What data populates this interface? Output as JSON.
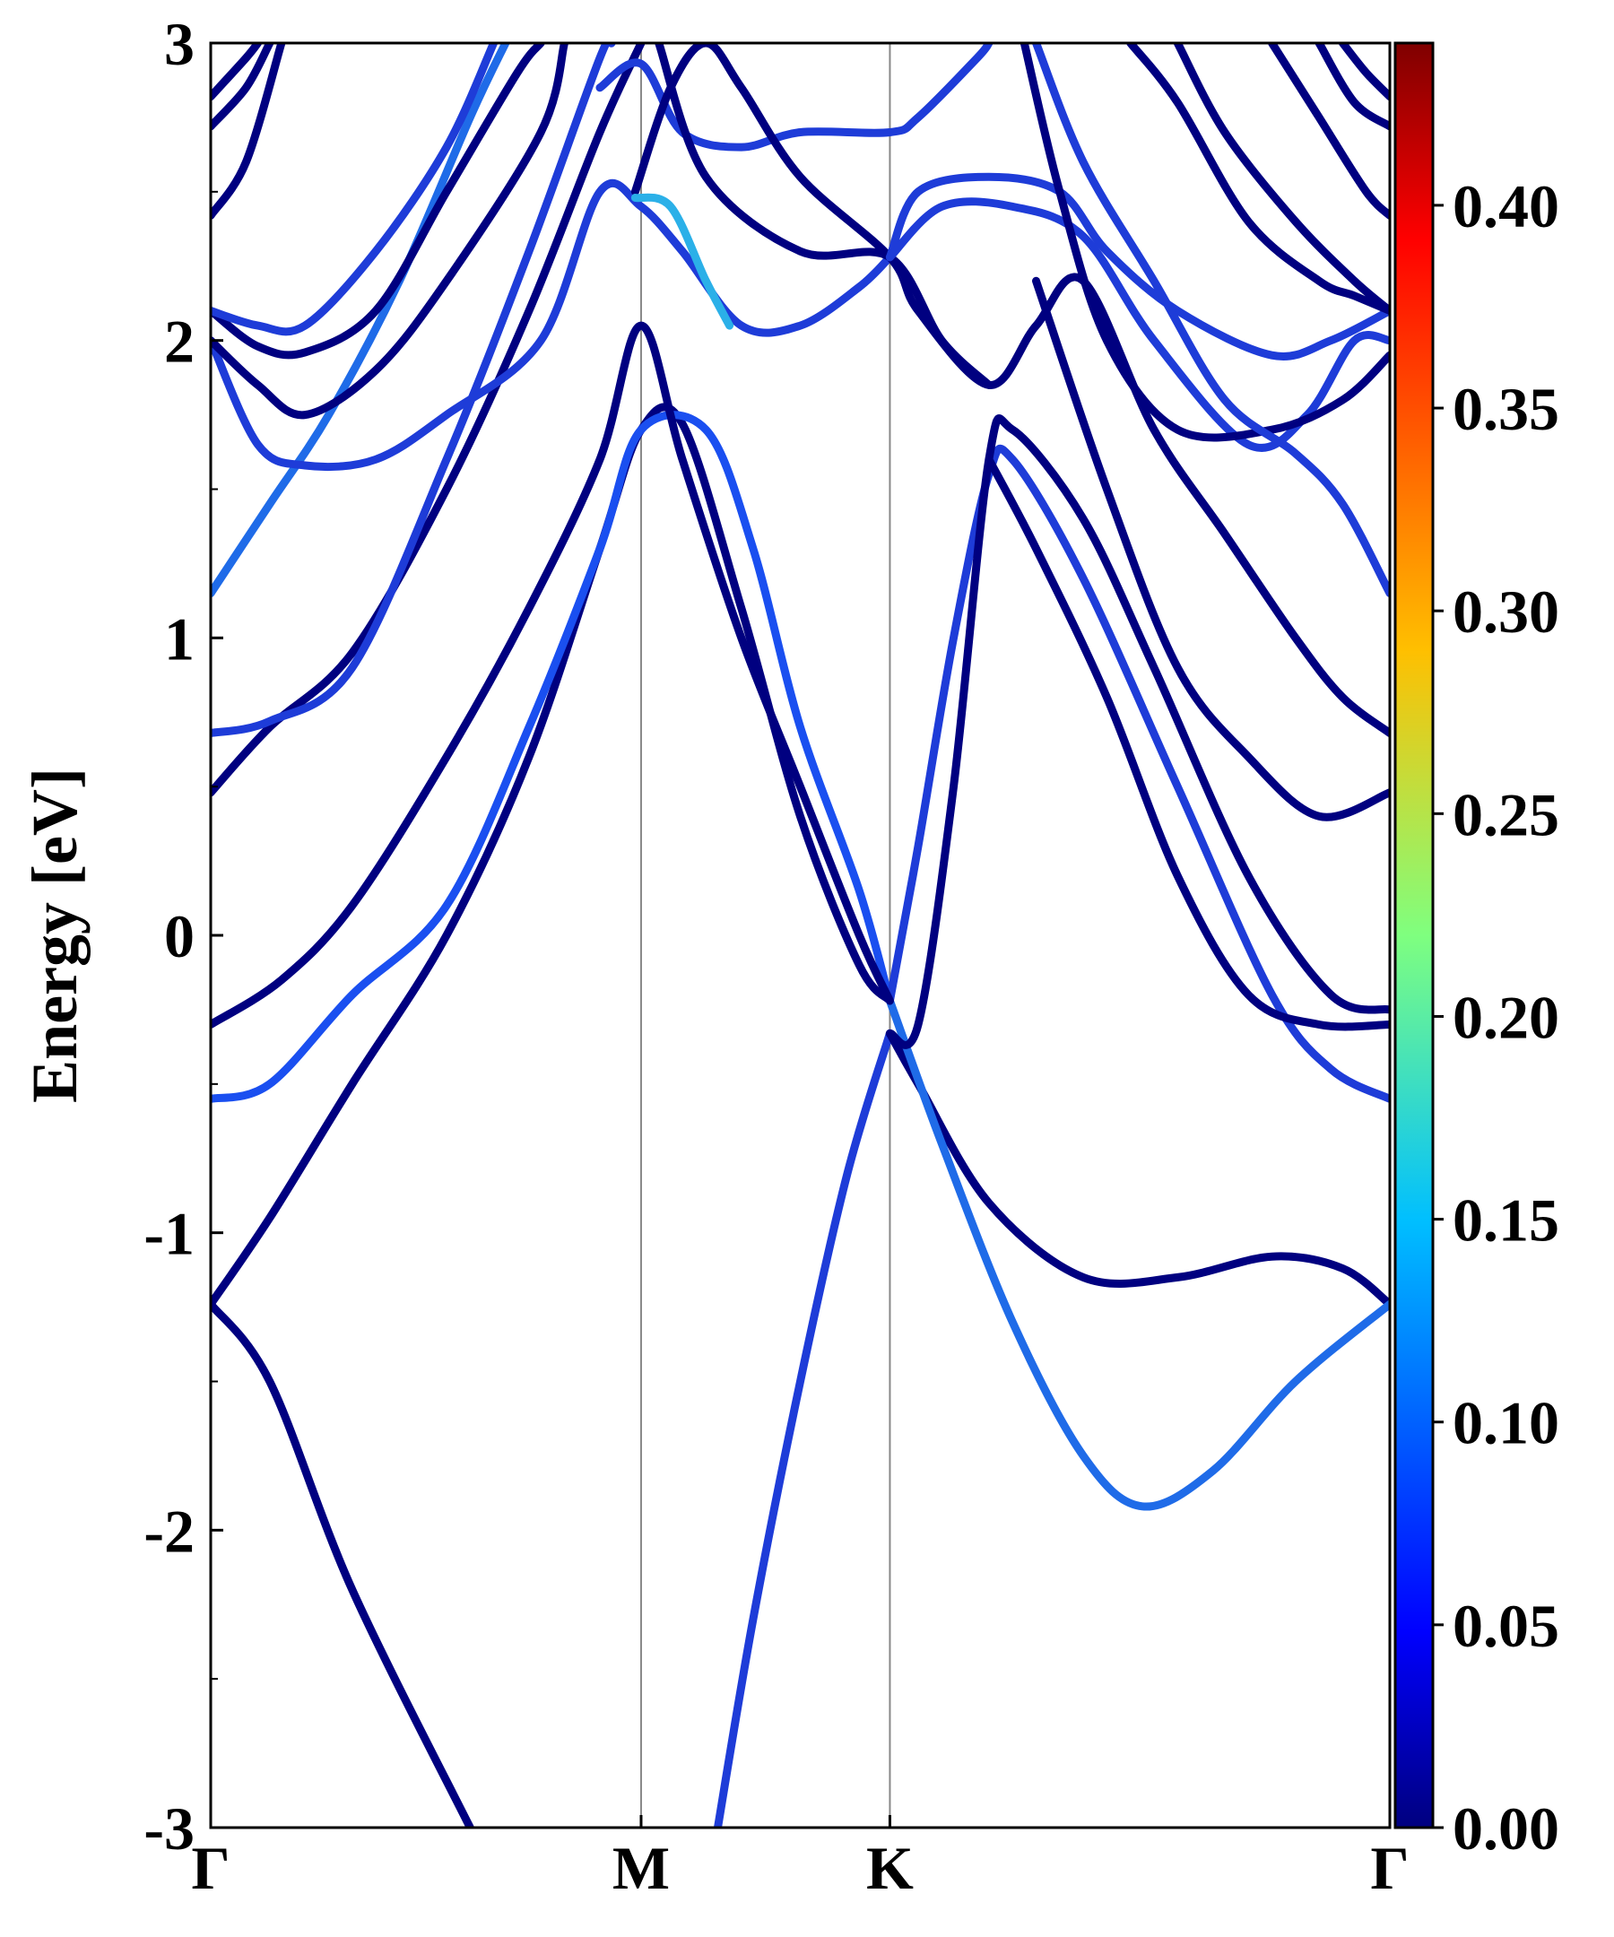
{
  "chart_data": {
    "type": "line",
    "title": "",
    "xlabel": "",
    "ylabel": "Energy [eV]",
    "ylim": [
      -3,
      3
    ],
    "xlim": [
      0,
      1
    ],
    "grid": false,
    "y_ticks": [
      3,
      2,
      1,
      0,
      -1,
      -2,
      -3
    ],
    "y_tick_labels": [
      "3",
      "2",
      "1",
      "0",
      "-1",
      "-2",
      "-3"
    ],
    "high_symmetry_points": [
      {
        "label": "Γ",
        "x": 0.0
      },
      {
        "label": "M",
        "x": 0.365
      },
      {
        "label": "K",
        "x": 0.576
      },
      {
        "label": "Γ",
        "x": 1.0
      }
    ],
    "colorbar": {
      "colormap": "jet",
      "range": [
        0.0,
        0.44
      ],
      "ticks": [
        0.0,
        0.05,
        0.1,
        0.15,
        0.2,
        0.25,
        0.3,
        0.35,
        0.4
      ],
      "tick_labels": [
        "0.00",
        "0.05",
        "0.10",
        "0.15",
        "0.20",
        "0.25",
        "0.30",
        "0.35",
        "0.40"
      ]
    },
    "series": [
      {
        "color": "#000080",
        "points": [
          [
            0.0,
            -1.24
          ],
          [
            0.05,
            -1.5
          ],
          [
            0.12,
            -2.2
          ],
          [
            0.22,
            -3.0
          ]
        ]
      },
      {
        "color": "#000080",
        "points": [
          [
            0.0,
            -1.24
          ],
          [
            0.05,
            -0.95
          ],
          [
            0.12,
            -0.5
          ],
          [
            0.2,
            0.0
          ],
          [
            0.27,
            0.6
          ],
          [
            0.33,
            1.3
          ],
          [
            0.365,
            1.7
          ],
          [
            0.4,
            1.72
          ],
          [
            0.45,
            1.1
          ],
          [
            0.5,
            0.4
          ],
          [
            0.55,
            -0.1
          ],
          [
            0.576,
            -0.22
          ]
        ]
      },
      {
        "color": "#1a4ff0",
        "points": [
          [
            0.0,
            -0.55
          ],
          [
            0.05,
            -0.5
          ],
          [
            0.12,
            -0.2
          ],
          [
            0.2,
            0.1
          ],
          [
            0.27,
            0.7
          ],
          [
            0.33,
            1.3
          ],
          [
            0.365,
            1.7
          ],
          [
            0.42,
            1.7
          ],
          [
            0.46,
            1.3
          ],
          [
            0.5,
            0.7
          ],
          [
            0.55,
            0.15
          ],
          [
            0.576,
            -0.22
          ]
        ]
      },
      {
        "color": "#1e3cd8",
        "points": [
          [
            0.43,
            -3.0
          ],
          [
            0.46,
            -2.3
          ],
          [
            0.5,
            -1.5
          ],
          [
            0.54,
            -0.8
          ],
          [
            0.576,
            -0.33
          ]
        ]
      },
      {
        "color": "#000080",
        "points": [
          [
            0.576,
            -0.33
          ],
          [
            0.6,
            -0.5
          ],
          [
            0.66,
            -0.9
          ],
          [
            0.74,
            -1.15
          ],
          [
            0.82,
            -1.15
          ],
          [
            0.9,
            -1.08
          ],
          [
            0.96,
            -1.12
          ],
          [
            1.0,
            -1.24
          ]
        ]
      },
      {
        "color": "#1f6be8",
        "points": [
          [
            0.576,
            -0.22
          ],
          [
            0.62,
            -0.7
          ],
          [
            0.68,
            -1.3
          ],
          [
            0.74,
            -1.75
          ],
          [
            0.79,
            -1.92
          ],
          [
            0.85,
            -1.8
          ],
          [
            0.92,
            -1.5
          ],
          [
            1.0,
            -1.24
          ]
        ]
      },
      {
        "color": "#1e3cd8",
        "points": [
          [
            0.576,
            -0.22
          ],
          [
            0.6,
            0.3
          ],
          [
            0.63,
            1.0
          ],
          [
            0.66,
            1.55
          ],
          [
            0.68,
            1.6
          ],
          [
            0.74,
            1.2
          ],
          [
            0.82,
            0.5
          ],
          [
            0.9,
            -0.2
          ],
          [
            0.95,
            -0.45
          ],
          [
            1.0,
            -0.55
          ]
        ]
      },
      {
        "color": "#000080",
        "points": [
          [
            0.576,
            -0.33
          ],
          [
            0.6,
            -0.3
          ],
          [
            0.63,
            0.5
          ],
          [
            0.66,
            1.6
          ],
          [
            0.68,
            1.7
          ],
          [
            0.74,
            1.4
          ],
          [
            0.8,
            0.9
          ],
          [
            0.88,
            0.2
          ],
          [
            0.95,
            -0.2
          ],
          [
            1.0,
            -0.25
          ]
        ]
      },
      {
        "color": "#000080",
        "points": [
          [
            0.0,
            -0.3
          ],
          [
            0.06,
            -0.15
          ],
          [
            0.12,
            0.1
          ],
          [
            0.2,
            0.6
          ],
          [
            0.27,
            1.1
          ],
          [
            0.33,
            1.6
          ],
          [
            0.365,
            2.05
          ],
          [
            0.4,
            1.6
          ],
          [
            0.45,
            1.0
          ],
          [
            0.5,
            0.5
          ],
          [
            0.55,
            0.0
          ],
          [
            0.576,
            -0.22
          ]
        ]
      },
      {
        "color": "#000080",
        "points": [
          [
            0.0,
            0.48
          ],
          [
            0.05,
            0.7
          ],
          [
            0.12,
            0.95
          ],
          [
            0.2,
            1.5
          ],
          [
            0.27,
            2.1
          ],
          [
            0.33,
            2.7
          ],
          [
            0.365,
            3.0
          ]
        ]
      },
      {
        "color": "#1e3cd8",
        "points": [
          [
            0.0,
            0.68
          ],
          [
            0.05,
            0.72
          ],
          [
            0.12,
            0.9
          ],
          [
            0.2,
            1.6
          ],
          [
            0.27,
            2.3
          ],
          [
            0.33,
            2.95
          ],
          [
            0.34,
            3.0
          ]
        ]
      },
      {
        "color": "#1f6be8",
        "points": [
          [
            0.0,
            1.15
          ],
          [
            0.05,
            1.45
          ],
          [
            0.1,
            1.75
          ],
          [
            0.16,
            2.2
          ],
          [
            0.22,
            2.75
          ],
          [
            0.25,
            3.0
          ]
        ]
      },
      {
        "color": "#1e3cd8",
        "points": [
          [
            0.0,
            2.0
          ],
          [
            0.04,
            1.65
          ],
          [
            0.08,
            1.58
          ],
          [
            0.14,
            1.6
          ],
          [
            0.2,
            1.75
          ],
          [
            0.28,
            2.0
          ],
          [
            0.33,
            2.5
          ],
          [
            0.365,
            2.45
          ],
          [
            0.4,
            2.3
          ],
          [
            0.45,
            2.05
          ],
          [
            0.5,
            2.05
          ],
          [
            0.55,
            2.18
          ],
          [
            0.576,
            2.28
          ]
        ]
      },
      {
        "color": "#000080",
        "points": [
          [
            0.0,
            2.0
          ],
          [
            0.04,
            1.85
          ],
          [
            0.08,
            1.75
          ],
          [
            0.14,
            1.9
          ],
          [
            0.2,
            2.2
          ],
          [
            0.28,
            2.7
          ],
          [
            0.3,
            3.0
          ]
        ]
      },
      {
        "color": "#000080",
        "points": [
          [
            0.0,
            2.1
          ],
          [
            0.04,
            1.98
          ],
          [
            0.08,
            1.96
          ],
          [
            0.14,
            2.1
          ],
          [
            0.2,
            2.5
          ],
          [
            0.26,
            2.9
          ],
          [
            0.28,
            3.0
          ]
        ]
      },
      {
        "color": "#1e3cd8",
        "points": [
          [
            0.0,
            2.1
          ],
          [
            0.04,
            2.05
          ],
          [
            0.08,
            2.05
          ],
          [
            0.14,
            2.3
          ],
          [
            0.2,
            2.65
          ],
          [
            0.24,
            3.0
          ]
        ]
      },
      {
        "color": "#000080",
        "points": [
          [
            0.0,
            2.42
          ],
          [
            0.03,
            2.6
          ],
          [
            0.06,
            3.0
          ]
        ]
      },
      {
        "color": "#000080",
        "points": [
          [
            0.0,
            2.72
          ],
          [
            0.03,
            2.85
          ],
          [
            0.05,
            3.0
          ]
        ]
      },
      {
        "color": "#000080",
        "points": [
          [
            0.0,
            2.82
          ],
          [
            0.03,
            2.95
          ],
          [
            0.04,
            3.0
          ]
        ]
      },
      {
        "color": "#1e3cd8",
        "points": [
          [
            0.33,
            2.85
          ],
          [
            0.365,
            2.93
          ],
          [
            0.4,
            2.7
          ],
          [
            0.45,
            2.65
          ],
          [
            0.5,
            2.7
          ],
          [
            0.576,
            2.7
          ],
          [
            0.6,
            2.75
          ],
          [
            0.65,
            2.95
          ],
          [
            0.66,
            3.0
          ]
        ]
      },
      {
        "color": "#000080",
        "points": [
          [
            0.36,
            2.5
          ],
          [
            0.39,
            2.85
          ],
          [
            0.42,
            3.0
          ],
          [
            0.45,
            2.85
          ],
          [
            0.5,
            2.55
          ],
          [
            0.576,
            2.28
          ],
          [
            0.6,
            2.1
          ],
          [
            0.66,
            1.85
          ],
          [
            0.7,
            2.05
          ],
          [
            0.74,
            2.2
          ],
          [
            0.8,
            1.7
          ],
          [
            0.86,
            1.35
          ],
          [
            0.92,
            1.0
          ],
          [
            0.96,
            0.8
          ],
          [
            1.0,
            0.68
          ]
        ]
      },
      {
        "color": "#000080",
        "points": [
          [
            0.38,
            3.0
          ],
          [
            0.42,
            2.55
          ],
          [
            0.5,
            2.3
          ],
          [
            0.576,
            2.28
          ],
          [
            0.62,
            2.0
          ],
          [
            0.66,
            1.85
          ]
        ]
      },
      {
        "color": "#1e3cd8",
        "points": [
          [
            0.576,
            2.28
          ],
          [
            0.6,
            2.5
          ],
          [
            0.66,
            2.55
          ],
          [
            0.72,
            2.5
          ],
          [
            0.76,
            2.3
          ],
          [
            0.82,
            2.1
          ],
          [
            0.9,
            1.95
          ],
          [
            0.95,
            2.0
          ],
          [
            1.0,
            2.1
          ]
        ]
      },
      {
        "color": "#1e3cd8",
        "points": [
          [
            0.576,
            2.28
          ],
          [
            0.62,
            2.45
          ],
          [
            0.68,
            2.45
          ],
          [
            0.74,
            2.35
          ],
          [
            0.8,
            2.0
          ],
          [
            0.88,
            1.65
          ],
          [
            0.93,
            1.75
          ],
          [
            0.97,
            2.0
          ],
          [
            1.0,
            2.0
          ]
        ]
      },
      {
        "color": "#000080",
        "points": [
          [
            0.69,
            3.0
          ],
          [
            0.72,
            2.5
          ],
          [
            0.76,
            2.0
          ],
          [
            0.82,
            1.7
          ],
          [
            0.9,
            1.7
          ],
          [
            0.96,
            1.8
          ],
          [
            1.0,
            1.95
          ]
        ]
      },
      {
        "color": "#1e3cd8",
        "points": [
          [
            0.7,
            3.0
          ],
          [
            0.74,
            2.6
          ],
          [
            0.8,
            2.2
          ],
          [
            0.86,
            1.8
          ],
          [
            0.92,
            1.62
          ],
          [
            0.96,
            1.45
          ],
          [
            1.0,
            1.15
          ]
        ]
      },
      {
        "color": "#000080",
        "points": [
          [
            0.78,
            3.0
          ],
          [
            0.82,
            2.8
          ],
          [
            0.88,
            2.4
          ],
          [
            0.94,
            2.2
          ],
          [
            0.97,
            2.15
          ],
          [
            1.0,
            2.1
          ]
        ]
      },
      {
        "color": "#000080",
        "points": [
          [
            0.82,
            3.0
          ],
          [
            0.86,
            2.7
          ],
          [
            0.92,
            2.4
          ],
          [
            0.97,
            2.2
          ],
          [
            1.0,
            2.1
          ]
        ]
      },
      {
        "color": "#000080",
        "points": [
          [
            0.9,
            3.0
          ],
          [
            0.94,
            2.75
          ],
          [
            0.98,
            2.5
          ],
          [
            1.0,
            2.42
          ]
        ]
      },
      {
        "color": "#000080",
        "points": [
          [
            0.94,
            3.0
          ],
          [
            0.97,
            2.8
          ],
          [
            1.0,
            2.72
          ]
        ]
      },
      {
        "color": "#000080",
        "points": [
          [
            0.96,
            3.0
          ],
          [
            0.98,
            2.9
          ],
          [
            1.0,
            2.82
          ]
        ]
      },
      {
        "color": "#000080",
        "points": [
          [
            0.66,
            1.6
          ],
          [
            0.7,
            1.3
          ],
          [
            0.76,
            0.8
          ],
          [
            0.82,
            0.2
          ],
          [
            0.88,
            -0.2
          ],
          [
            0.94,
            -0.3
          ],
          [
            1.0,
            -0.3
          ]
        ]
      },
      {
        "color": "#000080",
        "points": [
          [
            0.7,
            2.2
          ],
          [
            0.76,
            1.5
          ],
          [
            0.82,
            0.9
          ],
          [
            0.88,
            0.6
          ],
          [
            0.94,
            0.4
          ],
          [
            1.0,
            0.48
          ]
        ]
      },
      {
        "color": "#2bb0e8",
        "points": [
          [
            0.36,
            2.48
          ],
          [
            0.39,
            2.45
          ],
          [
            0.42,
            2.2
          ],
          [
            0.44,
            2.05
          ]
        ]
      }
    ]
  }
}
